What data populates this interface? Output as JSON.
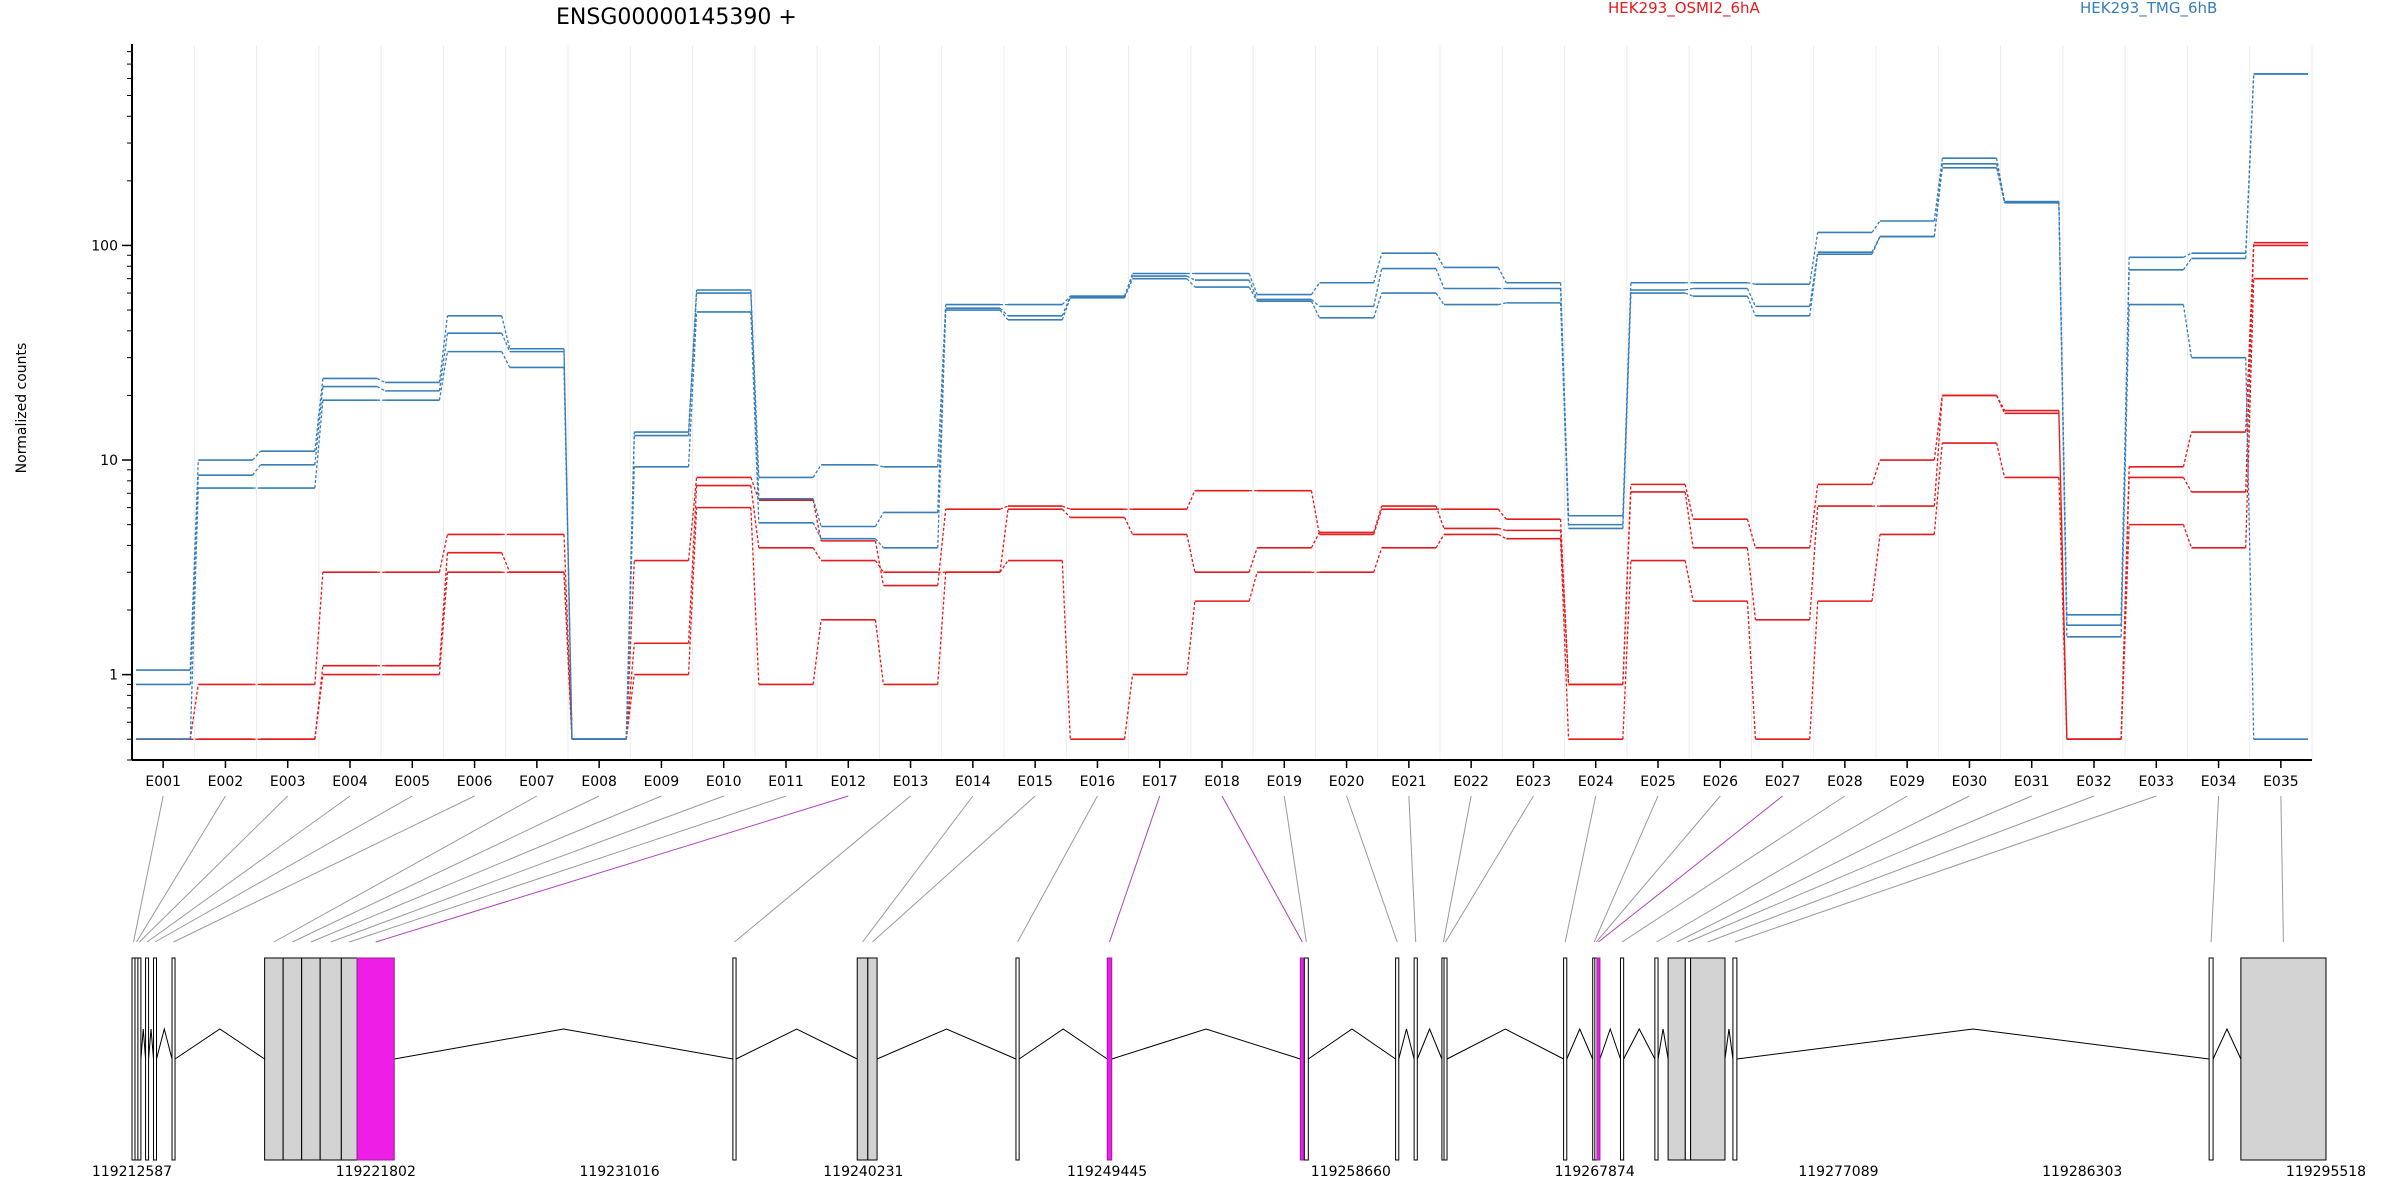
{
  "chart_data": {
    "type": "line",
    "title": "ENSG00000145390 +",
    "ylabel": "Normalized counts",
    "yscale": "log",
    "ylim": [
      0.4,
      850
    ],
    "yticks": [
      1,
      10,
      100
    ],
    "grid": "vertical lines at exon bins",
    "legend_position": "top",
    "colors": {
      "red": "#e41a1c",
      "blue": "#377eb8",
      "highlight": "#ee1ee6",
      "exon_fill": "#d3d3d3"
    },
    "categories": [
      "E001",
      "E002",
      "E003",
      "E004",
      "E005",
      "E006",
      "E007",
      "E008",
      "E009",
      "E010",
      "E011",
      "E012",
      "E013",
      "E014",
      "E015",
      "E016",
      "E017",
      "E018",
      "E019",
      "E020",
      "E021",
      "E022",
      "E023",
      "E024",
      "E025",
      "E026",
      "E027",
      "E028",
      "E029",
      "E030",
      "E031",
      "E032",
      "E033",
      "E034",
      "E035"
    ],
    "highlighted_exons": [
      "E012",
      "E017",
      "E018",
      "E027"
    ],
    "series": [
      {
        "name": "HEK293_OSMI2_6hA",
        "color": "#e41a1c",
        "values": [
          0.5,
          0.9,
          0.9,
          3,
          3,
          4.5,
          4.5,
          0.5,
          3.4,
          8.3,
          6.5,
          4.2,
          2.6,
          5.9,
          6.1,
          5.9,
          5.9,
          7.2,
          7.2,
          4.5,
          5.9,
          5.9,
          5.3,
          0.9,
          7.7,
          5.3,
          3.9,
          7.7,
          10,
          20,
          17,
          0.5,
          9.3,
          13.5,
          103
        ]
      },
      {
        "name": "HEK293_OSMI2_6hA",
        "color": "#e41a1c",
        "values": [
          0.5,
          0.5,
          0.5,
          1.1,
          1.1,
          3.7,
          3,
          0.5,
          1.4,
          7.6,
          3.9,
          3.4,
          3,
          3,
          5.9,
          5.4,
          4.5,
          3,
          3.9,
          4.6,
          6.1,
          4.8,
          4.7,
          0.9,
          7.1,
          3.9,
          1.8,
          6.1,
          6.1,
          20,
          16.5,
          0.5,
          8.3,
          7.1,
          100
        ]
      },
      {
        "name": "HEK293_OSMI2_6hA",
        "color": "#e41a1c",
        "values": [
          0.5,
          0.5,
          0.5,
          1,
          1,
          3,
          3,
          0.5,
          1,
          6,
          0.9,
          1.8,
          0.9,
          3,
          3.4,
          0.5,
          1,
          2.2,
          3,
          3,
          3.9,
          4.5,
          4.3,
          0.5,
          3.4,
          2.2,
          0.5,
          2.2,
          4.5,
          12,
          8.3,
          0.5,
          5,
          3.9,
          70
        ]
      },
      {
        "name": "HEK293_TMG_6hB",
        "color": "#377eb8",
        "values": [
          1.05,
          10,
          11,
          24,
          23,
          47,
          33,
          0.5,
          13.5,
          62,
          8.3,
          9.5,
          9.3,
          53,
          53,
          58,
          74,
          74,
          59,
          67,
          92,
          79,
          67,
          5.5,
          67,
          67,
          66,
          115,
          130,
          255,
          160,
          1.9,
          88,
          92,
          630
        ]
      },
      {
        "name": "HEK293_TMG_6hB",
        "color": "#377eb8",
        "values": [
          0.9,
          8.5,
          9.5,
          22,
          21,
          39,
          32,
          0.5,
          13,
          60,
          6.6,
          4.9,
          5.7,
          51,
          47,
          58,
          72,
          69,
          56,
          52,
          78,
          63,
          63,
          5,
          62,
          63,
          52,
          93,
          110,
          240,
          160,
          1.7,
          77,
          87,
          630
        ]
      },
      {
        "name": "HEK293_TMG_6hB",
        "color": "#377eb8",
        "values": [
          0.5,
          7.4,
          7.4,
          19,
          19,
          32,
          27,
          0.5,
          9.3,
          49,
          5.1,
          4.3,
          3.9,
          50,
          45,
          57,
          70,
          64,
          55,
          46,
          60,
          53,
          54,
          4.8,
          60,
          58,
          47,
          91,
          110,
          230,
          158,
          1.5,
          53,
          30,
          0.5
        ]
      }
    ],
    "gene_model": {
      "coordinate_range": [
        119212587,
        119295518
      ],
      "coordinate_ticks": [
        119212587,
        119221802,
        119231016,
        119240231,
        119249445,
        119258660,
        119267874,
        119277089,
        119286303,
        119295518
      ],
      "exon_bins": [
        {
          "id": "E001",
          "start": 119212587,
          "end": 119212650
        },
        {
          "id": "E002",
          "start": 119212700,
          "end": 119212760
        },
        {
          "id": "E003",
          "start": 119212810,
          "end": 119212870
        },
        {
          "id": "E004",
          "start": 119213100,
          "end": 119213160
        },
        {
          "id": "E005",
          "start": 119213400,
          "end": 119213460
        },
        {
          "id": "E006",
          "start": 119214100,
          "end": 119214160
        },
        {
          "id": "E007",
          "start": 119217600,
          "end": 119218300
        },
        {
          "id": "E008",
          "start": 119218300,
          "end": 119219000
        },
        {
          "id": "E009",
          "start": 119219000,
          "end": 119219700
        },
        {
          "id": "E010",
          "start": 119219700,
          "end": 119220500
        },
        {
          "id": "E011",
          "start": 119220500,
          "end": 119221100
        },
        {
          "id": "E012",
          "start": 119221100,
          "end": 119222500
        },
        {
          "id": "E013",
          "start": 119235300,
          "end": 119235420
        },
        {
          "id": "E014",
          "start": 119240000,
          "end": 119240400
        },
        {
          "id": "E015",
          "start": 119240400,
          "end": 119240750
        },
        {
          "id": "E016",
          "start": 119246000,
          "end": 119246120
        },
        {
          "id": "E017",
          "start": 119249450,
          "end": 119249620
        },
        {
          "id": "E018",
          "start": 119256750,
          "end": 119256900
        },
        {
          "id": "E019",
          "start": 119256900,
          "end": 119257050
        },
        {
          "id": "E020",
          "start": 119260350,
          "end": 119260470
        },
        {
          "id": "E021",
          "start": 119261050,
          "end": 119261170
        },
        {
          "id": "E022",
          "start": 119262100,
          "end": 119262180
        },
        {
          "id": "E023",
          "start": 119262180,
          "end": 119262260
        },
        {
          "id": "E024",
          "start": 119266700,
          "end": 119266820
        },
        {
          "id": "E025",
          "start": 119267800,
          "end": 119267880
        },
        {
          "id": "E026",
          "start": 119267880,
          "end": 119267960
        },
        {
          "id": "E027",
          "start": 119267960,
          "end": 119268040
        },
        {
          "id": "E028",
          "start": 119268850,
          "end": 119268970
        },
        {
          "id": "E029",
          "start": 119270150,
          "end": 119270270
        },
        {
          "id": "E030",
          "start": 119270650,
          "end": 119271300
        },
        {
          "id": "E031",
          "start": 119271300,
          "end": 119271500
        },
        {
          "id": "E032",
          "start": 119271500,
          "end": 119272800
        },
        {
          "id": "E033",
          "start": 119273100,
          "end": 119273250
        },
        {
          "id": "E034",
          "start": 119291100,
          "end": 119291250
        },
        {
          "id": "E035",
          "start": 119292300,
          "end": 119295518
        }
      ]
    }
  }
}
